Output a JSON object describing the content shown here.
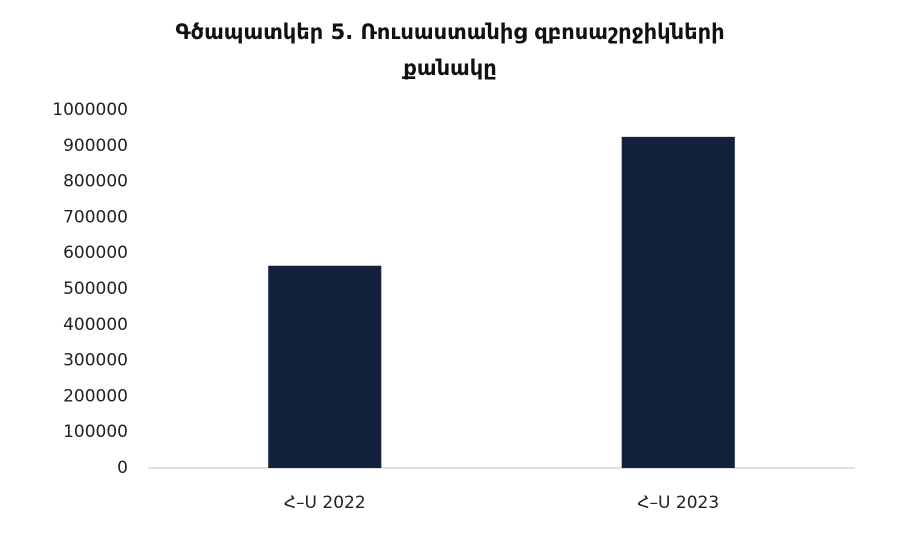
{
  "chart_data": {
    "type": "bar",
    "title": "Գծապատկեր 5. Ռուսաստանից զբոսաշրջիկների քանակը",
    "categories": [
      "Հ–Ս 2022",
      "Հ–Ս 2023"
    ],
    "values": [
      565000,
      925000
    ],
    "color": "#14213d",
    "ylim": [
      0,
      1000000
    ],
    "yticks": [
      0,
      100000,
      200000,
      300000,
      400000,
      500000,
      600000,
      700000,
      800000,
      900000,
      1000000
    ],
    "grid": false
  }
}
